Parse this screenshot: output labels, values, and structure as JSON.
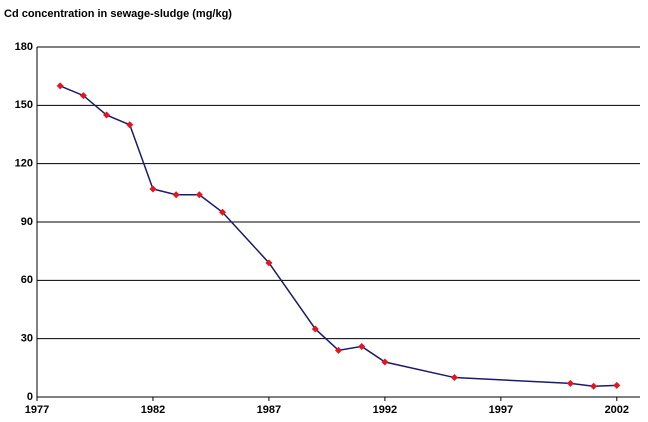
{
  "chart_data": {
    "type": "line",
    "title": "Cd concentration in sewage-sludge (mg/kg)",
    "x": [
      1978,
      1979,
      1980,
      1981,
      1982,
      1983,
      1984,
      1985,
      1987,
      1989,
      1990,
      1991,
      1992,
      1995,
      2000,
      2001,
      2002
    ],
    "series": [
      {
        "name": "Cd",
        "color": "#1a1a6e",
        "marker_color": "#e8141c",
        "values": [
          160,
          155,
          145,
          140,
          107,
          104,
          104,
          95,
          69,
          35,
          24,
          26,
          18,
          10,
          7,
          5.5,
          6
        ]
      }
    ],
    "xlim": [
      1977,
      2003
    ],
    "xticks": [
      1977,
      1982,
      1987,
      1992,
      1997,
      2002
    ],
    "ylim": [
      0,
      180
    ],
    "yticks": [
      0,
      30,
      60,
      90,
      120,
      150,
      180
    ],
    "grid": true
  }
}
